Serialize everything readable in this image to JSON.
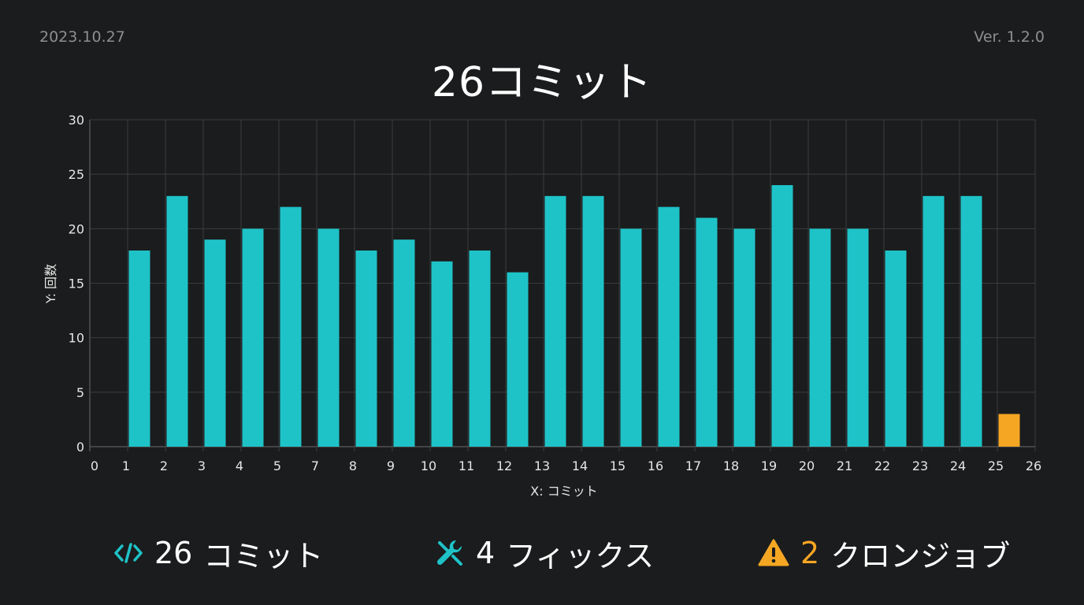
{
  "header": {
    "date": "2023.10.27",
    "version": "Ver. 1.2.0"
  },
  "chart_data": {
    "type": "bar",
    "title": "26コミット",
    "xlabel": "X: コミット",
    "ylabel": "Y: 回数",
    "ylim": [
      0,
      30
    ],
    "yticks": [
      0,
      5,
      10,
      15,
      20,
      25,
      30
    ],
    "xlim": [
      0,
      26
    ],
    "xtick_labels": [
      "0",
      "1",
      "2",
      "3",
      "4",
      "5",
      "7",
      "8",
      "9",
      "10",
      "11",
      "12",
      "13",
      "14",
      "15",
      "16",
      "17",
      "18",
      "19",
      "20",
      "21",
      "22",
      "23",
      "24",
      "25",
      "26"
    ],
    "grid": true,
    "categories": [
      "1",
      "2",
      "3",
      "4",
      "5",
      "7",
      "8",
      "9",
      "10",
      "11",
      "12",
      "13",
      "14",
      "15",
      "16",
      "17",
      "18",
      "19",
      "20",
      "21",
      "22",
      "23",
      "24",
      "25"
    ],
    "values": [
      18,
      23,
      19,
      20,
      22,
      20,
      18,
      19,
      17,
      18,
      16,
      23,
      23,
      20,
      22,
      21,
      20,
      24,
      20,
      20,
      18,
      23,
      23,
      3
    ],
    "highlight_index": 23,
    "colors": {
      "bar": "#1ec3c8",
      "highlight": "#f5a623",
      "grid": "#3a3c3e",
      "axis": "#6a6d70"
    }
  },
  "stats": {
    "commits": {
      "icon": "code-icon",
      "value": "26",
      "label": "コミット"
    },
    "fixes": {
      "icon": "wrench-icon",
      "value": "4",
      "label": "フィックス"
    },
    "cron": {
      "icon": "warning-icon",
      "value": "2",
      "label": "クロンジョブ"
    }
  }
}
